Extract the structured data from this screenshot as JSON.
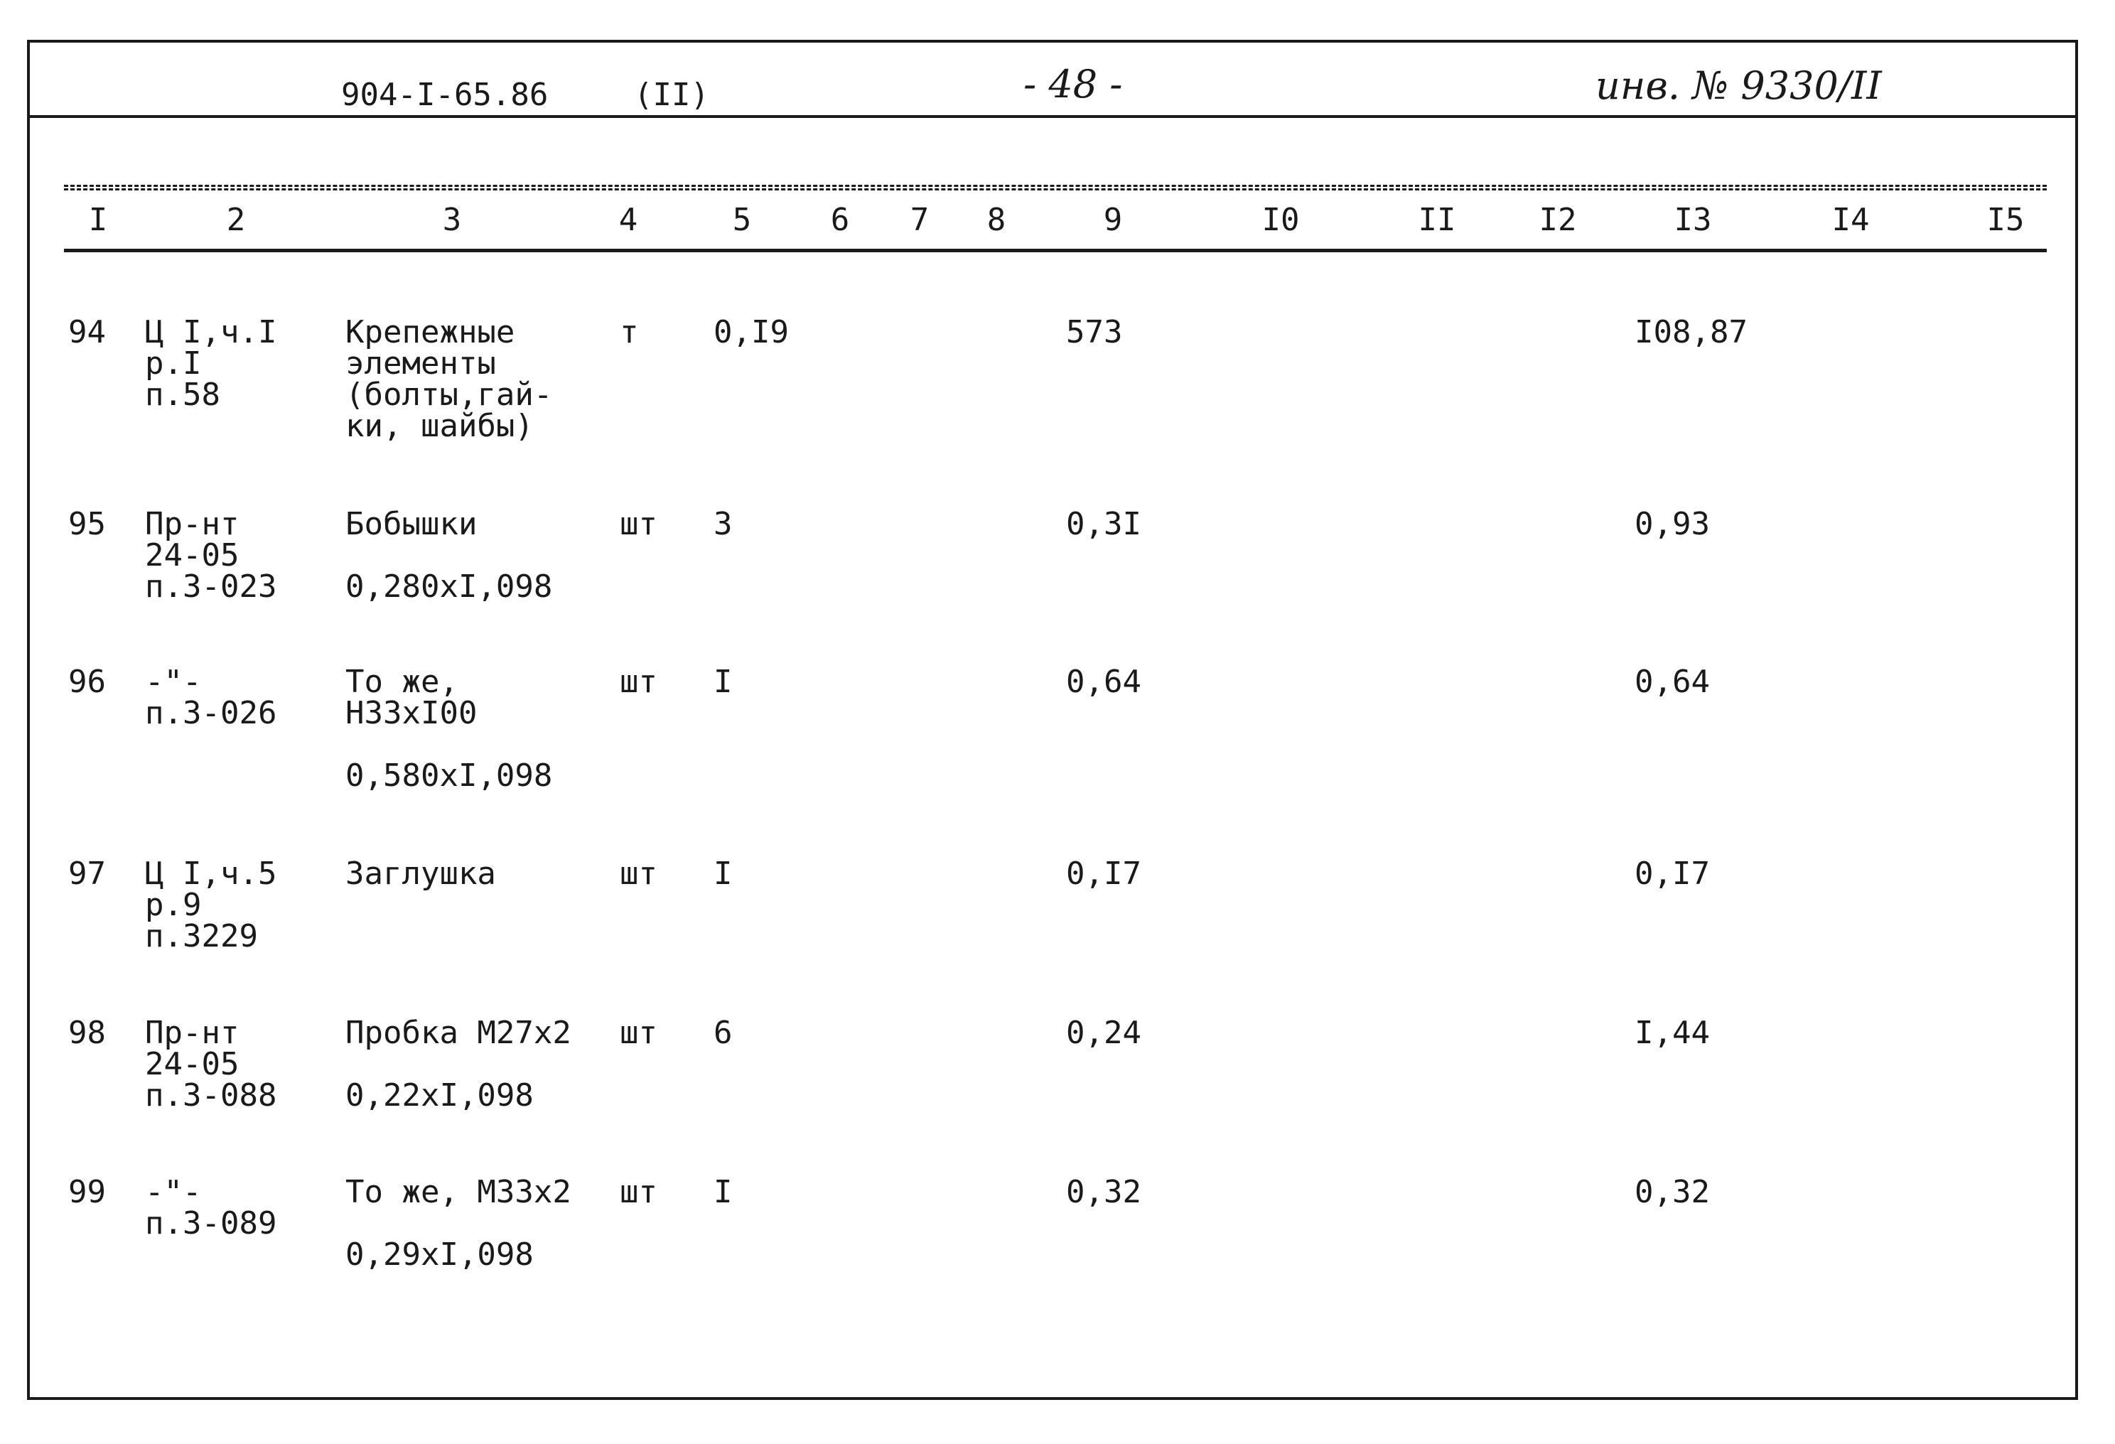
{
  "header": {
    "doc_code": "904-I-65.86",
    "part": "(II)",
    "page": "- 48 -",
    "inventory": "инв. № 9330/II"
  },
  "columns": [
    "I",
    "2",
    "3",
    "4",
    "5",
    "6",
    "7",
    "8",
    "9",
    "I0",
    "II",
    "I2",
    "I3",
    "I4",
    "I5"
  ],
  "rows": [
    {
      "num": "94",
      "ref": "Ц I,ч.I\nр.I\nп.58",
      "name": "Крепежные\nэлементы\n(болты,гай-\nки, шайбы)",
      "unit": "т",
      "qty": "0,I9",
      "price": "573",
      "total": "I08,87"
    },
    {
      "num": "95",
      "ref": "Пр-нт\n24-05\nп.3-023",
      "name": "Бобышки\n\n0,280хI,098",
      "unit": "шт",
      "qty": "3",
      "price": "0,3I",
      "total": "0,93"
    },
    {
      "num": "96",
      "ref": "-\"-\nп.3-026",
      "name": "То же,\nН33хI00\n\n0,580хI,098",
      "unit": "шт",
      "qty": "I",
      "price": "0,64",
      "total": "0,64"
    },
    {
      "num": "97",
      "ref": "Ц I,ч.5\nр.9\nп.3229",
      "name": "Заглушка",
      "unit": "шт",
      "qty": "I",
      "price": "0,I7",
      "total": "0,I7"
    },
    {
      "num": "98",
      "ref": "Пр-нт\n24-05\nп.3-088",
      "name": "Пробка М27х2\n\n0,22хI,098",
      "unit": "шт",
      "qty": "6",
      "price": "0,24",
      "total": "I,44"
    },
    {
      "num": "99",
      "ref": "-\"-\nп.3-089",
      "name": "То же, М33х2\n\n0,29хI,098",
      "unit": "шт",
      "qty": "I",
      "price": "0,32",
      "total": "0,32"
    }
  ]
}
